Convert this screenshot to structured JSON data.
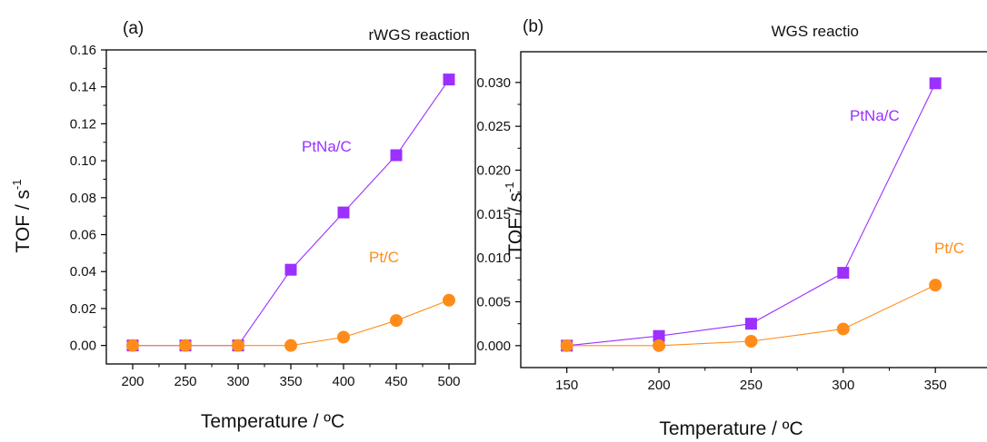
{
  "chart_data": [
    {
      "type": "line",
      "panel_label": "(a)",
      "title": "rWGS reaction",
      "xlabel": "Temperature / ºC",
      "ylabel": "TOF / s",
      "ylabel_sup": "-1",
      "xlim": [
        175,
        525
      ],
      "ylim": [
        -0.01,
        0.16
      ],
      "xticks": [
        200,
        250,
        300,
        350,
        400,
        450,
        500
      ],
      "xtick_labels": [
        "200",
        "250",
        "300",
        "350",
        "400",
        "450",
        "500"
      ],
      "yticks": [
        0.0,
        0.02,
        0.04,
        0.06,
        0.08,
        0.1,
        0.12,
        0.14,
        0.16
      ],
      "ytick_labels": [
        "0.00",
        "0.02",
        "0.04",
        "0.06",
        "0.08",
        "0.10",
        "0.12",
        "0.14",
        "0.16"
      ],
      "grid": false,
      "series": [
        {
          "name": "PtNa/C",
          "marker": "square",
          "color": "#9b30ff",
          "x": [
            200,
            250,
            300,
            350,
            400,
            450,
            500
          ],
          "y": [
            0.0,
            0.0,
            0.0,
            0.041,
            0.072,
            0.103,
            0.144
          ]
        },
        {
          "name": "Pt/C",
          "marker": "circle",
          "color": "#ff8c1a",
          "x": [
            200,
            250,
            300,
            350,
            400,
            450,
            500
          ],
          "y": [
            0.0,
            0.0,
            0.0,
            0.0,
            0.0045,
            0.0135,
            0.0245
          ]
        }
      ]
    },
    {
      "type": "line",
      "panel_label": "(b)",
      "title": "WGS reactio",
      "xlabel": "Temperature / ºC",
      "ylabel": "TOF / s",
      "ylabel_sup": "-1",
      "xlim": [
        125,
        380
      ],
      "ylim": [
        -0.0025,
        0.0335
      ],
      "xticks": [
        150,
        200,
        250,
        300,
        350
      ],
      "xtick_labels": [
        "150",
        "200",
        "250",
        "300",
        "350"
      ],
      "yticks": [
        0.0,
        0.005,
        0.01,
        0.015,
        0.02,
        0.025,
        0.03
      ],
      "ytick_labels": [
        "0.000",
        "0.005",
        "0.010",
        "0.015",
        "0.020",
        "0.025",
        "0.030"
      ],
      "grid": false,
      "series": [
        {
          "name": "PtNa/C",
          "marker": "square",
          "color": "#9b30ff",
          "x": [
            150,
            200,
            250,
            300,
            350
          ],
          "y": [
            0.0,
            0.0011,
            0.0025,
            0.0083,
            0.0299
          ]
        },
        {
          "name": "Pt/C",
          "marker": "circle",
          "color": "#ff8c1a",
          "x": [
            150,
            200,
            250,
            300,
            350
          ],
          "y": [
            0.0,
            0.0,
            0.0005,
            0.0019,
            0.0069
          ]
        }
      ]
    }
  ]
}
